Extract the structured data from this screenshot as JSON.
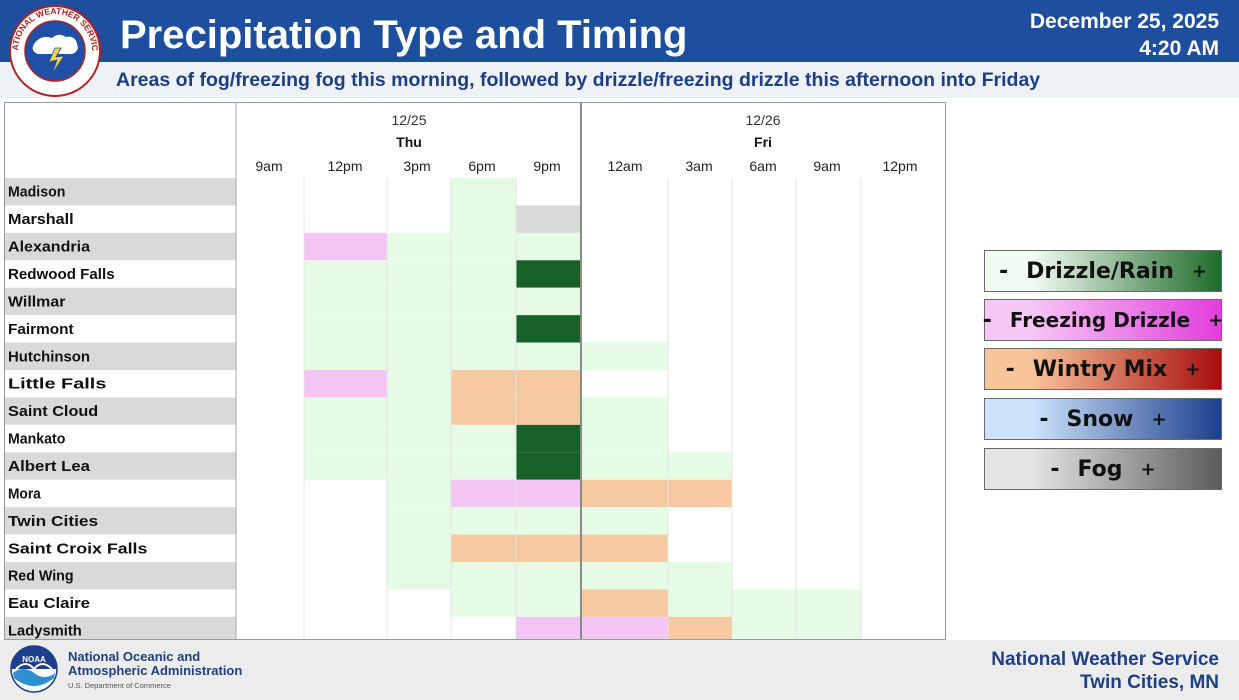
{
  "header": {
    "title": "Precipitation Type and Timing",
    "date": "December 25, 2025",
    "time": "4:20 AM",
    "subtitle": "Areas of fog/freezing fog this morning, followed by drizzle/freezing drizzle this afternoon into Friday"
  },
  "footer": {
    "agency_line1": "National Oceanic and",
    "agency_line2": "Atmospheric Administration",
    "department": "U.S. Department of Commerce",
    "office_line1": "National Weather Service",
    "office_line2": "Twin Cities, MN"
  },
  "logos": {
    "nws_seal_text": "NATIONAL WEATHER SERVICE",
    "noaa_text": "NOAA"
  },
  "legend": [
    {
      "label": "Drizzle/Rain",
      "minus": "-",
      "plus": "+",
      "gradient": [
        "#f2fbf2",
        "#1f6b2a"
      ]
    },
    {
      "label": "Freezing Drizzle",
      "minus": "-",
      "plus": "+",
      "gradient": [
        "#f6c6f4",
        "#e23ddc"
      ]
    },
    {
      "label": "Wintry Mix",
      "minus": "-",
      "plus": "+",
      "gradient": [
        "#f8c49a",
        "#a70d0d"
      ]
    },
    {
      "label": "Snow",
      "minus": "-",
      "plus": "+",
      "gradient": [
        "#cde3fb",
        "#1b3f8c"
      ]
    },
    {
      "label": "Fog",
      "minus": "-",
      "plus": "+",
      "gradient": [
        "#e4e4e4",
        "#5c5c5c"
      ]
    }
  ],
  "chart_data": {
    "type": "heatmap",
    "days": [
      {
        "date": "12/25",
        "day": "Thu",
        "start_col": 0
      },
      {
        "date": "12/26",
        "day": "Fri",
        "start_col": 5
      }
    ],
    "time_labels": [
      "9am",
      "12pm",
      "3pm",
      "6pm",
      "9pm",
      "12am",
      "3am",
      "6am",
      "9am",
      "12pm"
    ],
    "locations": [
      "Madison",
      "Marshall",
      "Alexandria",
      "Redwood Falls",
      "Willmar",
      "Fairmont",
      "Hutchinson",
      "Little Falls",
      "Saint Cloud",
      "Mankato",
      "Albert Lea",
      "Mora",
      "Twin Cities",
      "Saint Croix Falls",
      "Red Wing",
      "Eau Claire",
      "Ladysmith"
    ],
    "category_colors": {
      "drizzle_light": "#e6fbe6",
      "drizzle_heavy": "#176028",
      "freezing_drizzle": "#f3c5f3",
      "wintry_mix": "#f6c9a0",
      "fog": "#d9d9d9"
    },
    "cells": [
      {
        "location": "Madison",
        "start": "6pm",
        "end": "9pm",
        "type": "drizzle_light"
      },
      {
        "location": "Marshall",
        "start": "6pm",
        "end": "9pm",
        "type": "drizzle_light"
      },
      {
        "location": "Marshall",
        "start": "9pm",
        "end": "12am",
        "type": "fog"
      },
      {
        "location": "Alexandria",
        "start": "12pm",
        "end": "3pm",
        "type": "freezing_drizzle"
      },
      {
        "location": "Alexandria",
        "start": "3pm",
        "end": "12am",
        "type": "drizzle_light"
      },
      {
        "location": "Redwood Falls",
        "start": "12pm",
        "end": "9pm",
        "type": "drizzle_light"
      },
      {
        "location": "Redwood Falls",
        "start": "9pm",
        "end": "12am",
        "type": "drizzle_heavy"
      },
      {
        "location": "Willmar",
        "start": "12pm",
        "end": "12am",
        "type": "drizzle_light"
      },
      {
        "location": "Fairmont",
        "start": "12pm",
        "end": "9pm",
        "type": "drizzle_light"
      },
      {
        "location": "Fairmont",
        "start": "9pm",
        "end": "12am",
        "type": "drizzle_heavy"
      },
      {
        "location": "Hutchinson",
        "start": "12pm",
        "end": "3am",
        "type": "drizzle_light"
      },
      {
        "location": "Little Falls",
        "start": "12pm",
        "end": "3pm",
        "type": "freezing_drizzle"
      },
      {
        "location": "Little Falls",
        "start": "3pm",
        "end": "6pm",
        "type": "drizzle_light"
      },
      {
        "location": "Little Falls",
        "start": "6pm",
        "end": "12am",
        "type": "wintry_mix"
      },
      {
        "location": "Saint Cloud",
        "start": "12pm",
        "end": "6pm",
        "type": "drizzle_light"
      },
      {
        "location": "Saint Cloud",
        "start": "6pm",
        "end": "12am",
        "type": "wintry_mix"
      },
      {
        "location": "Saint Cloud",
        "start": "12am",
        "end": "3am",
        "type": "drizzle_light"
      },
      {
        "location": "Mankato",
        "start": "12pm",
        "end": "9pm",
        "type": "drizzle_light"
      },
      {
        "location": "Mankato",
        "start": "9pm",
        "end": "12am",
        "type": "drizzle_heavy"
      },
      {
        "location": "Mankato",
        "start": "12am",
        "end": "3am",
        "type": "drizzle_light"
      },
      {
        "location": "Albert Lea",
        "start": "12pm",
        "end": "9pm",
        "type": "drizzle_light"
      },
      {
        "location": "Albert Lea",
        "start": "9pm",
        "end": "12am",
        "type": "drizzle_heavy"
      },
      {
        "location": "Albert Lea",
        "start": "12am",
        "end": "6am",
        "type": "drizzle_light"
      },
      {
        "location": "Mora",
        "start": "3pm",
        "end": "6pm",
        "type": "drizzle_light"
      },
      {
        "location": "Mora",
        "start": "6pm",
        "end": "12am",
        "type": "freezing_drizzle"
      },
      {
        "location": "Mora",
        "start": "12am",
        "end": "6am",
        "type": "wintry_mix"
      },
      {
        "location": "Twin Cities",
        "start": "3pm",
        "end": "3am",
        "type": "drizzle_light"
      },
      {
        "location": "Saint Croix Falls",
        "start": "3pm",
        "end": "6pm",
        "type": "drizzle_light"
      },
      {
        "location": "Saint Croix Falls",
        "start": "6pm",
        "end": "3am",
        "type": "wintry_mix"
      },
      {
        "location": "Red Wing",
        "start": "3pm",
        "end": "6am",
        "type": "drizzle_light"
      },
      {
        "location": "Eau Claire",
        "start": "6pm",
        "end": "12am",
        "type": "drizzle_light"
      },
      {
        "location": "Eau Claire",
        "start": "12am",
        "end": "3am",
        "type": "wintry_mix"
      },
      {
        "location": "Eau Claire",
        "start": "3am",
        "end": "12pm",
        "type": "drizzle_light"
      },
      {
        "location": "Ladysmith",
        "start": "9pm",
        "end": "3am",
        "type": "freezing_drizzle"
      },
      {
        "location": "Ladysmith",
        "start": "3am",
        "end": "6am",
        "type": "wintry_mix"
      },
      {
        "location": "Ladysmith",
        "start": "6am",
        "end": "12pm",
        "type": "drizzle_light"
      }
    ]
  }
}
